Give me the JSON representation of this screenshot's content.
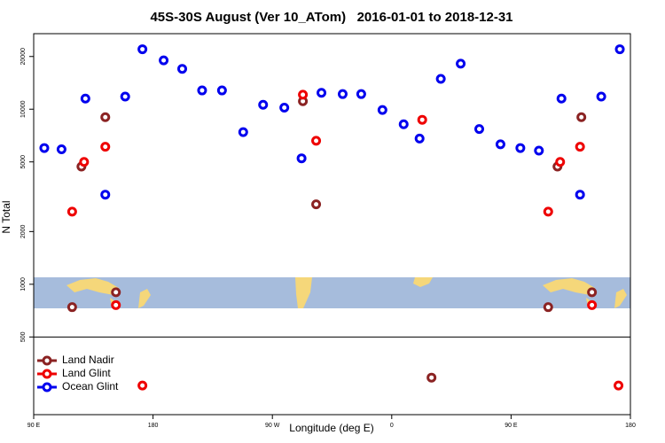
{
  "chart_data": {
    "type": "scatter",
    "title": "45S-30S August (Ver 10_ATom)   2016-01-01 to 2018-12-31",
    "x_label": "Longitude (deg E)",
    "y_label": "N Total",
    "log_y": true,
    "xlim": [
      90,
      540
    ],
    "ylim": [
      180,
      27000
    ],
    "xticks": [
      {
        "value": 90,
        "label": "90 E"
      },
      180,
      {
        "value": 270,
        "label": "90 W"
      },
      {
        "value": 360,
        "label": "0"
      },
      {
        "value": 450,
        "label": "90 E"
      },
      {
        "value": 540,
        "label": "180"
      }
    ],
    "yticks": [
      500,
      1000,
      2000,
      5000,
      10000,
      20000
    ],
    "legend": "bottom-left",
    "series": [
      {
        "name": "Land Nadir",
        "color": "#8b2323",
        "x": [
          119,
          126,
          144,
          152,
          293,
          303,
          390,
          478,
          485,
          503,
          511
        ],
        "values": [
          740,
          4700,
          9000,
          900,
          11100,
          2860,
          293,
          740,
          4700,
          9000,
          900
        ]
      },
      {
        "name": "Land Glint",
        "color": "#ee0000",
        "x": [
          119,
          128,
          144,
          152,
          172,
          293,
          303,
          383,
          478,
          487,
          502,
          511,
          531
        ],
        "values": [
          2600,
          5000,
          6100,
          760,
          264,
          12100,
          6600,
          8700,
          2600,
          5000,
          6100,
          760,
          264
        ]
      },
      {
        "name": "Ocean Glint",
        "color": "#0000ee",
        "x": [
          98,
          111,
          129,
          144,
          159,
          172,
          188,
          202,
          217,
          232,
          248,
          263,
          279,
          292,
          307,
          323,
          337,
          353,
          369,
          381,
          397,
          412,
          426,
          442,
          457,
          471,
          488,
          502,
          518,
          532
        ],
        "values": [
          6000,
          5900,
          11500,
          3250,
          11800,
          22000,
          19000,
          17000,
          12800,
          12800,
          7400,
          10600,
          10200,
          5240,
          12400,
          12200,
          12200,
          9900,
          8200,
          6800,
          14900,
          18200,
          7700,
          6300,
          6000,
          5800,
          11500,
          3250,
          11800,
          22000
        ]
      }
    ]
  }
}
